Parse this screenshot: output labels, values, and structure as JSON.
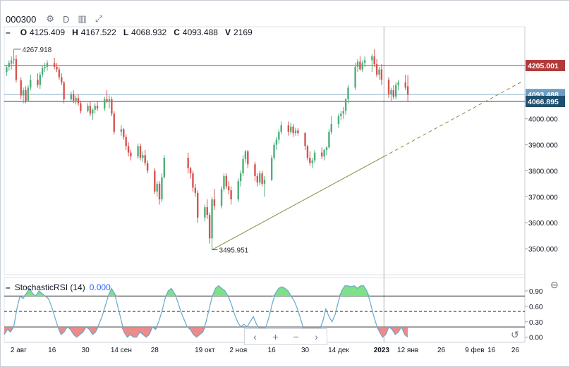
{
  "header": {
    "symbol": "000300",
    "settings_icon": "gear-icon",
    "interval": "D",
    "compare_icon": "compare-icon",
    "expand_icon": "expand-icon"
  },
  "ohlc": {
    "o_label": "O",
    "o": "4125.409",
    "h_label": "H",
    "h": "4167.522",
    "l_label": "L",
    "l": "4068.932",
    "c_label": "C",
    "c": "4093.488",
    "v_label": "V",
    "v": "2169"
  },
  "colors": {
    "up": "#4caf7a",
    "down": "#d9534f",
    "resist": "#b23a3a",
    "support": "#1f4f6e",
    "trend": "#8a8a3a",
    "stoch": "#6aa8c9"
  },
  "chart_data": [
    {
      "type": "candlestick",
      "ylim": [
        3400,
        4300
      ],
      "yticks": [
        3500,
        3600,
        3700,
        3800,
        3900,
        4000
      ],
      "ytick_labels": [
        "3500.000",
        "3600.000",
        "3700.000",
        "3800.000",
        "3900.000",
        "4000.000"
      ],
      "xticks": [
        {
          "label": "2 авг",
          "day": 0
        },
        {
          "label": "16",
          "day": 14
        },
        {
          "label": "30",
          "day": 28
        },
        {
          "label": "14 сен",
          "day": 43
        },
        {
          "label": "28",
          "day": 57
        },
        {
          "label": "19 окт",
          "day": 78
        },
        {
          "label": "2 ноя",
          "day": 92
        },
        {
          "label": "16",
          "day": 106
        },
        {
          "label": "30",
          "day": 120
        },
        {
          "label": "14 дек",
          "day": 134
        },
        {
          "label": "2023",
          "day": 152
        },
        {
          "label": "12 янв",
          "day": 163
        },
        {
          "label": "26",
          "day": 177
        },
        {
          "label": "9 фев",
          "day": 191
        },
        {
          "label": "16",
          "day": 198
        },
        {
          "label": "26",
          "day": 208
        }
      ],
      "price_labels": {
        "high": "4267.918",
        "low": "3495.951",
        "resistance": "4205.001",
        "support": "4066.895",
        "hidden": "4093.488"
      },
      "levels": {
        "resistance": 4205.001,
        "support": 4066.895,
        "current": 4093.488
      },
      "crosshair_day": 153,
      "candles": [
        {
          "d": -5,
          "o": 4180,
          "h": 4205,
          "l": 4165,
          "c": 4198
        },
        {
          "d": -4,
          "o": 4200,
          "h": 4225,
          "l": 4185,
          "c": 4215
        },
        {
          "d": -3,
          "o": 4212,
          "h": 4240,
          "l": 4190,
          "c": 4225
        },
        {
          "d": -2,
          "o": 4228,
          "h": 4268,
          "l": 4210,
          "c": 4230
        },
        {
          "d": -1,
          "o": 4230,
          "h": 4245,
          "l": 4140,
          "c": 4150
        },
        {
          "d": 1,
          "o": 4148,
          "h": 4160,
          "l": 4075,
          "c": 4090
        },
        {
          "d": 2,
          "o": 4090,
          "h": 4120,
          "l": 4060,
          "c": 4110
        },
        {
          "d": 3,
          "o": 4110,
          "h": 4125,
          "l": 4060,
          "c": 4070
        },
        {
          "d": 4,
          "o": 4070,
          "h": 4130,
          "l": 4065,
          "c": 4120
        },
        {
          "d": 5,
          "o": 4120,
          "h": 4170,
          "l": 4110,
          "c": 4150
        },
        {
          "d": 8,
          "o": 4150,
          "h": 4175,
          "l": 4120,
          "c": 4130
        },
        {
          "d": 9,
          "o": 4130,
          "h": 4180,
          "l": 4115,
          "c": 4170
        },
        {
          "d": 10,
          "o": 4170,
          "h": 4205,
          "l": 4160,
          "c": 4195
        },
        {
          "d": 11,
          "o": 4195,
          "h": 4215,
          "l": 4180,
          "c": 4200
        },
        {
          "d": 12,
          "o": 4200,
          "h": 4225,
          "l": 4185,
          "c": 4215
        },
        {
          "d": 15,
          "o": 4215,
          "h": 4235,
          "l": 4190,
          "c": 4200
        },
        {
          "d": 16,
          "o": 4200,
          "h": 4215,
          "l": 4180,
          "c": 4190
        },
        {
          "d": 17,
          "o": 4190,
          "h": 4200,
          "l": 4150,
          "c": 4160
        },
        {
          "d": 18,
          "o": 4160,
          "h": 4175,
          "l": 4130,
          "c": 4140
        },
        {
          "d": 19,
          "o": 4140,
          "h": 4145,
          "l": 4060,
          "c": 4075
        },
        {
          "d": 22,
          "o": 4075,
          "h": 4105,
          "l": 4070,
          "c": 4095
        },
        {
          "d": 23,
          "o": 4095,
          "h": 4110,
          "l": 4060,
          "c": 4070
        },
        {
          "d": 24,
          "o": 4070,
          "h": 4090,
          "l": 4055,
          "c": 4080
        },
        {
          "d": 25,
          "o": 4080,
          "h": 4095,
          "l": 4050,
          "c": 4060
        },
        {
          "d": 26,
          "o": 4060,
          "h": 4070,
          "l": 4020,
          "c": 4030
        },
        {
          "d": 29,
          "o": 4030,
          "h": 4060,
          "l": 4025,
          "c": 4050
        },
        {
          "d": 30,
          "o": 4050,
          "h": 4065,
          "l": 4010,
          "c": 4020
        },
        {
          "d": 31,
          "o": 4020,
          "h": 4040,
          "l": 3995,
          "c": 4035
        },
        {
          "d": 32,
          "o": 4035,
          "h": 4060,
          "l": 4020,
          "c": 4050
        },
        {
          "d": 33,
          "o": 4050,
          "h": 4070,
          "l": 4030,
          "c": 4040
        },
        {
          "d": 36,
          "o": 4040,
          "h": 4085,
          "l": 4030,
          "c": 4075
        },
        {
          "d": 37,
          "o": 4075,
          "h": 4110,
          "l": 4060,
          "c": 4065
        },
        {
          "d": 38,
          "o": 4065,
          "h": 4090,
          "l": 4040,
          "c": 4075
        },
        {
          "d": 39,
          "o": 4075,
          "h": 4085,
          "l": 4010,
          "c": 4020
        },
        {
          "d": 40,
          "o": 4020,
          "h": 4030,
          "l": 3940,
          "c": 3950
        },
        {
          "d": 43,
          "o": 3950,
          "h": 3975,
          "l": 3935,
          "c": 3960
        },
        {
          "d": 44,
          "o": 3960,
          "h": 3965,
          "l": 3920,
          "c": 3930
        },
        {
          "d": 45,
          "o": 3930,
          "h": 3940,
          "l": 3880,
          "c": 3895
        },
        {
          "d": 46,
          "o": 3895,
          "h": 3910,
          "l": 3855,
          "c": 3870
        },
        {
          "d": 47,
          "o": 3870,
          "h": 3880,
          "l": 3840,
          "c": 3855
        },
        {
          "d": 50,
          "o": 3855,
          "h": 3905,
          "l": 3845,
          "c": 3895
        },
        {
          "d": 51,
          "o": 3895,
          "h": 3905,
          "l": 3840,
          "c": 3850
        },
        {
          "d": 52,
          "o": 3850,
          "h": 3875,
          "l": 3835,
          "c": 3860
        },
        {
          "d": 53,
          "o": 3860,
          "h": 3880,
          "l": 3820,
          "c": 3830
        },
        {
          "d": 54,
          "o": 3830,
          "h": 3840,
          "l": 3790,
          "c": 3800
        },
        {
          "d": 57,
          "o": 3800,
          "h": 3810,
          "l": 3710,
          "c": 3720
        },
        {
          "d": 58,
          "o": 3720,
          "h": 3760,
          "l": 3700,
          "c": 3750
        },
        {
          "d": 59,
          "o": 3750,
          "h": 3760,
          "l": 3670,
          "c": 3690
        },
        {
          "d": 60,
          "o": 3690,
          "h": 3790,
          "l": 3680,
          "c": 3775
        },
        {
          "d": 61,
          "o": 3775,
          "h": 3860,
          "l": 3770,
          "c": 3850
        },
        {
          "d": 71,
          "o": 3850,
          "h": 3870,
          "l": 3790,
          "c": 3810
        },
        {
          "d": 72,
          "o": 3810,
          "h": 3815,
          "l": 3770,
          "c": 3790
        },
        {
          "d": 73,
          "o": 3790,
          "h": 3800,
          "l": 3720,
          "c": 3735
        },
        {
          "d": 74,
          "o": 3735,
          "h": 3750,
          "l": 3700,
          "c": 3715
        },
        {
          "d": 75,
          "o": 3715,
          "h": 3725,
          "l": 3600,
          "c": 3620
        },
        {
          "d": 78,
          "o": 3620,
          "h": 3670,
          "l": 3605,
          "c": 3660
        },
        {
          "d": 79,
          "o": 3660,
          "h": 3690,
          "l": 3615,
          "c": 3630
        },
        {
          "d": 80,
          "o": 3630,
          "h": 3640,
          "l": 3520,
          "c": 3540
        },
        {
          "d": 81,
          "o": 3540,
          "h": 3700,
          "l": 3496,
          "c": 3690
        },
        {
          "d": 82,
          "o": 3690,
          "h": 3730,
          "l": 3650,
          "c": 3665
        },
        {
          "d": 85,
          "o": 3665,
          "h": 3740,
          "l": 3655,
          "c": 3730
        },
        {
          "d": 86,
          "o": 3730,
          "h": 3790,
          "l": 3720,
          "c": 3780
        },
        {
          "d": 87,
          "o": 3780,
          "h": 3790,
          "l": 3730,
          "c": 3740
        },
        {
          "d": 88,
          "o": 3740,
          "h": 3760,
          "l": 3710,
          "c": 3725
        },
        {
          "d": 89,
          "o": 3725,
          "h": 3740,
          "l": 3670,
          "c": 3690
        },
        {
          "d": 92,
          "o": 3690,
          "h": 3770,
          "l": 3680,
          "c": 3760
        },
        {
          "d": 93,
          "o": 3760,
          "h": 3800,
          "l": 3740,
          "c": 3790
        },
        {
          "d": 94,
          "o": 3790,
          "h": 3860,
          "l": 3780,
          "c": 3845
        },
        {
          "d": 95,
          "o": 3845,
          "h": 3880,
          "l": 3830,
          "c": 3875
        },
        {
          "d": 96,
          "o": 3875,
          "h": 3880,
          "l": 3810,
          "c": 3825
        },
        {
          "d": 99,
          "o": 3825,
          "h": 3835,
          "l": 3760,
          "c": 3780
        },
        {
          "d": 100,
          "o": 3780,
          "h": 3790,
          "l": 3740,
          "c": 3755
        },
        {
          "d": 101,
          "o": 3755,
          "h": 3800,
          "l": 3745,
          "c": 3790
        },
        {
          "d": 102,
          "o": 3790,
          "h": 3800,
          "l": 3740,
          "c": 3750
        },
        {
          "d": 103,
          "o": 3750,
          "h": 3780,
          "l": 3700,
          "c": 3765
        },
        {
          "d": 106,
          "o": 3765,
          "h": 3860,
          "l": 3760,
          "c": 3850
        },
        {
          "d": 107,
          "o": 3850,
          "h": 3910,
          "l": 3840,
          "c": 3900
        },
        {
          "d": 108,
          "o": 3900,
          "h": 3930,
          "l": 3880,
          "c": 3920
        },
        {
          "d": 109,
          "o": 3920,
          "h": 3960,
          "l": 3905,
          "c": 3950
        },
        {
          "d": 110,
          "o": 3950,
          "h": 3990,
          "l": 3940,
          "c": 3975
        },
        {
          "d": 113,
          "o": 3975,
          "h": 3990,
          "l": 3935,
          "c": 3950
        },
        {
          "d": 114,
          "o": 3950,
          "h": 3985,
          "l": 3940,
          "c": 3970
        },
        {
          "d": 115,
          "o": 3970,
          "h": 3980,
          "l": 3930,
          "c": 3945
        },
        {
          "d": 116,
          "o": 3945,
          "h": 3965,
          "l": 3935,
          "c": 3955
        },
        {
          "d": 117,
          "o": 3955,
          "h": 3965,
          "l": 3935,
          "c": 3945
        },
        {
          "d": 120,
          "o": 3945,
          "h": 3950,
          "l": 3880,
          "c": 3895
        },
        {
          "d": 121,
          "o": 3895,
          "h": 3900,
          "l": 3840,
          "c": 3850
        },
        {
          "d": 122,
          "o": 3850,
          "h": 3875,
          "l": 3820,
          "c": 3830
        },
        {
          "d": 123,
          "o": 3830,
          "h": 3850,
          "l": 3810,
          "c": 3840
        },
        {
          "d": 124,
          "o": 3840,
          "h": 3880,
          "l": 3830,
          "c": 3870
        },
        {
          "d": 127,
          "o": 3870,
          "h": 3890,
          "l": 3845,
          "c": 3855
        },
        {
          "d": 128,
          "o": 3855,
          "h": 3885,
          "l": 3840,
          "c": 3880
        },
        {
          "d": 129,
          "o": 3880,
          "h": 3895,
          "l": 3860,
          "c": 3890
        },
        {
          "d": 130,
          "o": 3890,
          "h": 3960,
          "l": 3885,
          "c": 3950
        },
        {
          "d": 131,
          "o": 3950,
          "h": 4010,
          "l": 3940,
          "c": 3980
        },
        {
          "d": 134,
          "o": 3980,
          "h": 4020,
          "l": 3965,
          "c": 4010
        },
        {
          "d": 135,
          "o": 4010,
          "h": 4030,
          "l": 3995,
          "c": 4020
        },
        {
          "d": 136,
          "o": 4020,
          "h": 4045,
          "l": 4000,
          "c": 4030
        },
        {
          "d": 137,
          "o": 4030,
          "h": 4080,
          "l": 4015,
          "c": 4075
        },
        {
          "d": 138,
          "o": 4075,
          "h": 4130,
          "l": 4060,
          "c": 4120
        },
        {
          "d": 141,
          "o": 4120,
          "h": 4215,
          "l": 4110,
          "c": 4200
        },
        {
          "d": 142,
          "o": 4200,
          "h": 4230,
          "l": 4180,
          "c": 4220
        },
        {
          "d": 143,
          "o": 4220,
          "h": 4240,
          "l": 4185,
          "c": 4190
        },
        {
          "d": 144,
          "o": 4190,
          "h": 4225,
          "l": 4180,
          "c": 4215
        },
        {
          "d": 145,
          "o": 4215,
          "h": 4240,
          "l": 4200,
          "c": 4225
        },
        {
          "d": 148,
          "o": 4225,
          "h": 4250,
          "l": 4180,
          "c": 4240
        },
        {
          "d": 149,
          "o": 4240,
          "h": 4268,
          "l": 4200,
          "c": 4210
        },
        {
          "d": 150,
          "o": 4210,
          "h": 4230,
          "l": 4160,
          "c": 4170
        },
        {
          "d": 151,
          "o": 4170,
          "h": 4200,
          "l": 4150,
          "c": 4190
        },
        {
          "d": 152,
          "o": 4190,
          "h": 4210,
          "l": 4130,
          "c": 4150
        },
        {
          "d": 155,
          "o": 4150,
          "h": 4160,
          "l": 4080,
          "c": 4095
        },
        {
          "d": 156,
          "o": 4095,
          "h": 4120,
          "l": 4070,
          "c": 4110
        },
        {
          "d": 157,
          "o": 4110,
          "h": 4130,
          "l": 4075,
          "c": 4085
        },
        {
          "d": 158,
          "o": 4085,
          "h": 4140,
          "l": 4075,
          "c": 4130
        },
        {
          "d": 159,
          "o": 4130,
          "h": 4150,
          "l": 4110,
          "c": 4140
        },
        {
          "d": 162,
          "o": 4140,
          "h": 4170,
          "l": 4110,
          "c": 4120
        },
        {
          "d": 163,
          "o": 4125,
          "h": 4168,
          "l": 4069,
          "c": 4093
        }
      ]
    },
    {
      "type": "line",
      "title": "StochasticRSI (14)",
      "value_label": "0.000",
      "ylim": [
        -0.1,
        1.05
      ],
      "levels": [
        0.9,
        0.6,
        0.3,
        0.0
      ],
      "level_labels": [
        "0.90",
        "0.60",
        "0.30",
        "0.00"
      ],
      "upper_band": 0.8,
      "lower_band": 0.2,
      "values": [
        0.05,
        0.15,
        0.1,
        0.2,
        0.55,
        0.8,
        0.75,
        0.85,
        0.95,
        0.85,
        0.8,
        0.9,
        0.85,
        0.8,
        0.75,
        0.6,
        0.4,
        0.2,
        0.05,
        0.1,
        0.2,
        0.15,
        0.05,
        0.0,
        0.05,
        0.1,
        0.2,
        0.15,
        0.05,
        0.1,
        0.25,
        0.4,
        0.6,
        0.8,
        0.95,
        0.85,
        0.6,
        0.35,
        0.1,
        0.0,
        0.05,
        0.0,
        0.0,
        0.1,
        0.05,
        0.0,
        0.05,
        0.2,
        0.15,
        0.3,
        0.5,
        0.75,
        0.9,
        0.95,
        0.85,
        0.7,
        0.5,
        0.35,
        0.2,
        0.15,
        0.05,
        0.0,
        0.05,
        0.1,
        0.3,
        0.55,
        0.8,
        0.95,
        1.0,
        0.95,
        0.9,
        0.8,
        0.65,
        0.45,
        0.3,
        0.2,
        0.25,
        0.2,
        0.3,
        0.4,
        0.25,
        0.15,
        0.1,
        0.2,
        0.4,
        0.65,
        0.85,
        0.95,
        0.98,
        0.95,
        0.9,
        0.8,
        0.7,
        0.55,
        0.35,
        0.15,
        0.05,
        0.0,
        0.0,
        0.05,
        0.15,
        0.3,
        0.55,
        0.4,
        0.3,
        0.45,
        0.7,
        0.9,
        1.0,
        1.0,
        0.98,
        1.0,
        0.95,
        1.0,
        1.0,
        0.9,
        0.7,
        0.45,
        0.25,
        0.1,
        0.0,
        0.05,
        0.2,
        0.15,
        0.05,
        0.1,
        0.2,
        0.05,
        0.0
      ]
    }
  ],
  "controls": {
    "nav_left": "‹",
    "zoom_in": "+",
    "zoom_out": "−",
    "nav_right": "›",
    "reset_icon": "↺",
    "collapse_icon": "⊖"
  }
}
